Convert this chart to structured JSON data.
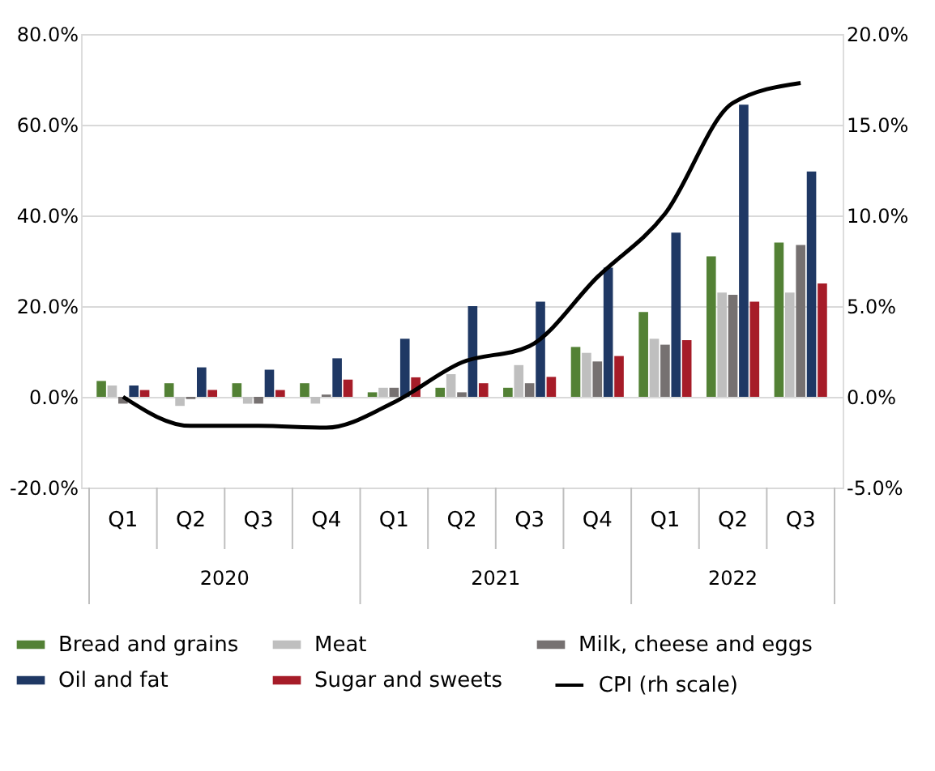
{
  "chart_data": {
    "type": "bar",
    "categories": [
      "Q1",
      "Q2",
      "Q3",
      "Q4",
      "Q1",
      "Q2",
      "Q3",
      "Q4",
      "Q1",
      "Q2",
      "Q3"
    ],
    "annotations": [
      "2020",
      "2021",
      "2022"
    ],
    "series": [
      {
        "name": "Bread and grains",
        "color": "#538135",
        "values": [
          3.5,
          3,
          3,
          3,
          1,
          2,
          2,
          11,
          18.7,
          31,
          34
        ]
      },
      {
        "name": "Meat",
        "color": "#bfbfbf",
        "values": [
          2.5,
          -2,
          -1.5,
          -1.5,
          2,
          5,
          7,
          9.7,
          12.8,
          23,
          23
        ]
      },
      {
        "name": "Milk, cheese and eggs",
        "color": "#767171",
        "values": [
          -1.5,
          -0.5,
          -1.5,
          0.5,
          2,
          1,
          3,
          7.8,
          11.5,
          22.5,
          33.5
        ]
      },
      {
        "name": "Oil and fat",
        "color": "#1f3864",
        "values": [
          2.5,
          6.5,
          6,
          8.5,
          12.8,
          20,
          21,
          28.5,
          36.2,
          64.4,
          49.7
        ]
      },
      {
        "name": "Sugar and sweets",
        "color": "#a61c28",
        "values": [
          1.5,
          1.5,
          1.5,
          3.8,
          4.3,
          3,
          4.4,
          9,
          12.5,
          21,
          25
        ]
      },
      {
        "name": "CPI (rh scale)",
        "color": "#000000",
        "type": "line",
        "axis": "y2",
        "line_style": "solid",
        "values": [
          0,
          -1.6,
          -1.6,
          -1.7,
          -0.3,
          1.9,
          2.8,
          6.6,
          10.1,
          16.2,
          17.3
        ]
      }
    ],
    "ylim": [
      -20,
      80
    ],
    "yticks": [
      {
        "value": -20,
        "label": "-20.0%"
      },
      {
        "value": 0,
        "label": "0.0%"
      },
      {
        "value": 20,
        "label": "20.0%"
      },
      {
        "value": 40,
        "label": "40.0%"
      },
      {
        "value": 60,
        "label": "60.0%"
      },
      {
        "value": 80,
        "label": "80.0%"
      }
    ],
    "y2lim": [
      -5,
      20
    ],
    "y2ticks": [
      {
        "value": -5,
        "label": "-5.0%"
      },
      {
        "value": 0,
        "label": "0.0%"
      },
      {
        "value": 5,
        "label": "5.0%"
      },
      {
        "value": 10,
        "label": "10.0%"
      },
      {
        "value": 15,
        "label": "15.0%"
      },
      {
        "value": 20,
        "label": "20.0%"
      }
    ],
    "grid": "y",
    "legend": "bottom",
    "marker": "none"
  }
}
